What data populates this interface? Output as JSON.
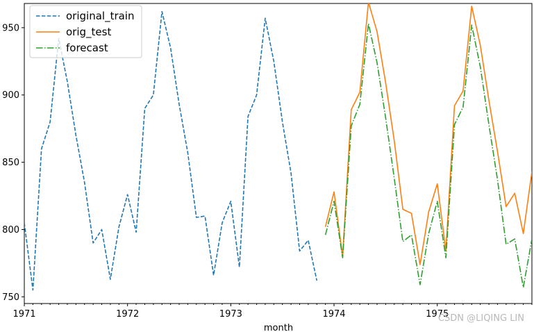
{
  "chart_data": {
    "type": "line",
    "xlabel": "month",
    "ylabel": "",
    "xlim": [
      "1971-01",
      "1975-12"
    ],
    "ylim": [
      745,
      968
    ],
    "x_ticks": [
      "1971",
      "1972",
      "1973",
      "1974",
      "1975"
    ],
    "y_ticks": [
      750,
      800,
      850,
      900,
      950
    ],
    "legend_position": "upper-left",
    "series": [
      {
        "name": "original_train",
        "color": "#1f77b4",
        "linestyle": "dashed",
        "x": [
          "1971-01",
          "1971-02",
          "1971-03",
          "1971-04",
          "1971-05",
          "1971-06",
          "1971-07",
          "1971-08",
          "1971-09",
          "1971-10",
          "1971-11",
          "1971-12",
          "1972-01",
          "1972-02",
          "1972-03",
          "1972-04",
          "1972-05",
          "1972-06",
          "1972-07",
          "1972-08",
          "1972-09",
          "1972-10",
          "1972-11",
          "1972-12",
          "1973-01",
          "1973-02",
          "1973-03",
          "1973-04",
          "1973-05",
          "1973-06",
          "1973-07",
          "1973-08",
          "1973-09",
          "1973-10",
          "1973-11",
          "1973-12"
        ],
        "values": [
          805,
          755,
          860,
          880,
          942,
          910,
          870,
          835,
          790,
          800,
          763,
          802,
          826,
          798,
          890,
          900,
          962,
          935,
          893,
          857,
          809,
          810,
          766,
          805,
          821,
          772,
          884,
          900,
          957,
          925,
          880,
          842,
          784,
          792,
          762,
          null
        ]
      },
      {
        "name": "orig_test",
        "color": "#ff7f0e",
        "linestyle": "solid",
        "x": [
          "1973-12",
          "1974-01",
          "1974-02",
          "1974-03",
          "1974-04",
          "1974-05",
          "1974-06",
          "1974-07",
          "1974-08",
          "1974-09",
          "1974-10",
          "1974-11",
          "1974-12",
          "1975-01",
          "1975-02",
          "1975-03",
          "1975-04",
          "1975-05",
          "1975-06",
          "1975-07",
          "1975-08",
          "1975-09",
          "1975-10",
          "1975-11",
          "1975-12"
        ],
        "values": [
          802,
          828,
          780,
          889,
          902,
          969,
          947,
          909,
          866,
          815,
          812,
          774,
          813,
          834,
          784,
          892,
          903,
          966,
          937,
          896,
          858,
          817,
          827,
          797,
          843
        ]
      },
      {
        "name": "forecast",
        "color": "#2ca02c",
        "linestyle": "dashdot",
        "x": [
          "1973-12",
          "1974-01",
          "1974-02",
          "1974-03",
          "1974-04",
          "1974-05",
          "1974-06",
          "1974-07",
          "1974-08",
          "1974-09",
          "1974-10",
          "1974-11",
          "1974-12",
          "1975-01",
          "1975-02",
          "1975-03",
          "1975-04",
          "1975-05",
          "1975-06",
          "1975-07",
          "1975-08",
          "1975-09",
          "1975-10",
          "1975-11",
          "1975-12"
        ],
        "values": [
          796,
          821,
          779,
          877,
          893,
          953,
          924,
          883,
          838,
          791,
          796,
          759,
          797,
          821,
          779,
          878,
          891,
          952,
          921,
          878,
          837,
          789,
          793,
          757,
          793
        ]
      }
    ]
  },
  "watermark": "CSDN @LIQING LIN"
}
